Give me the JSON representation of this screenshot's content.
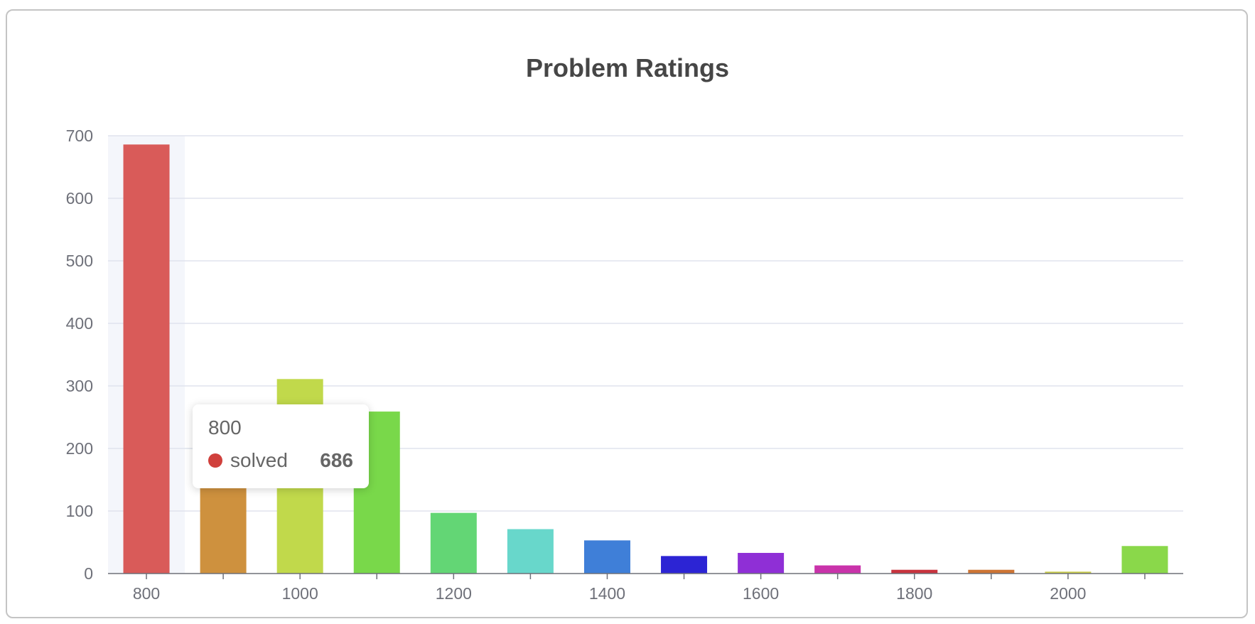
{
  "chart_data": {
    "type": "bar",
    "title": "Problem Ratings",
    "xlabel": "",
    "ylabel": "",
    "ylim": [
      0,
      700
    ],
    "yticks": [
      0,
      100,
      200,
      300,
      400,
      500,
      600,
      700
    ],
    "categories": [
      "800",
      "900",
      "1000",
      "1100",
      "1200",
      "1300",
      "1400",
      "1500",
      "1600",
      "1700",
      "1800",
      "1900",
      "2000",
      "2100"
    ],
    "xtick_labels": [
      "800",
      "",
      "1000",
      "",
      "1200",
      "",
      "1400",
      "",
      "1600",
      "",
      "1800",
      "",
      "2000",
      ""
    ],
    "series": [
      {
        "name": "solved",
        "values": [
          686,
          160,
          311,
          259,
          97,
          71,
          53,
          28,
          33,
          13,
          6,
          6,
          3,
          44
        ]
      }
    ],
    "bar_colors": [
      "#d95b59",
      "#ce913e",
      "#c1d94b",
      "#79d84a",
      "#63d675",
      "#68d7cb",
      "#3f7fd8",
      "#2c24d4",
      "#8f2fd6",
      "#c933aa",
      "#c8333e",
      "#cd7434",
      "#c8cc4a",
      "#8ad84a"
    ],
    "grid": true,
    "highlighted_index": 0,
    "tooltip": {
      "title": "800",
      "series": "solved",
      "value": "686",
      "color": "#d0403c"
    }
  }
}
